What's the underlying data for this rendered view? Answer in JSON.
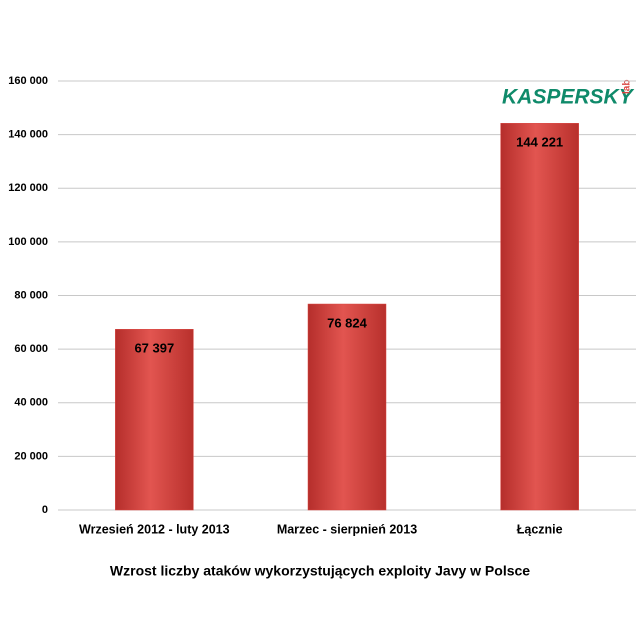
{
  "chart_data": {
    "type": "bar",
    "title": "Wzrost liczby ataków wykorzystujących exploity Javy w Polsce",
    "brand": "KASPERSKY",
    "brand_suffix": "lab",
    "categories": [
      "Wrzesień 2012 - luty 2013",
      "Marzec - sierpnień 2013",
      "Łącznie"
    ],
    "values": [
      67397,
      76824,
      144221
    ],
    "value_labels": [
      "67 397",
      "76 824",
      "144 221"
    ],
    "color": "#d9443f",
    "ylim": [
      0,
      160000
    ],
    "yticks": [
      0,
      {
        "value": 20000,
        "label": "20 000"
      },
      {
        "value": 40000,
        "label": "40 000"
      },
      {
        "value": 60000,
        "label": "60 000"
      },
      {
        "value": 80000,
        "label": "80 000"
      },
      {
        "value": 100000,
        "label": "100 000"
      },
      {
        "value": 120000,
        "label": "120 000"
      },
      {
        "value": 140000,
        "label": "140 000"
      },
      {
        "value": 160000,
        "label": "160 000"
      }
    ],
    "grid": true
  }
}
